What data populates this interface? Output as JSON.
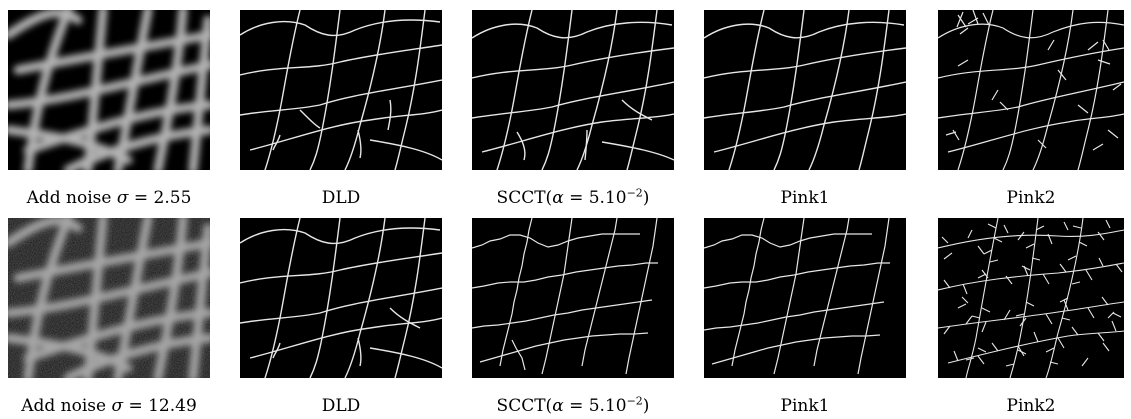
{
  "figure": {
    "rows": [
      {
        "captions": {
          "input": {
            "pre": "Add noise ",
            "sym": "σ",
            "post": " = 2.55"
          },
          "dld": "DLD",
          "scct": {
            "pre": "SCCT(",
            "sym": "α",
            "mid": " = 5.10",
            "sup": "−2",
            "post": ")"
          },
          "pink1": "Pink1",
          "pink2": "Pink2"
        }
      },
      {
        "captions": {
          "input": {
            "pre": "Add noise ",
            "sym": "σ",
            "post": " = 12.49"
          },
          "dld": "DLD",
          "scct": {
            "pre": "SCCT(",
            "sym": "α",
            "mid": " = 5.10",
            "sup": "−2",
            "post": ")"
          },
          "pink1": "Pink1",
          "pink2": "Pink2"
        }
      }
    ]
  }
}
